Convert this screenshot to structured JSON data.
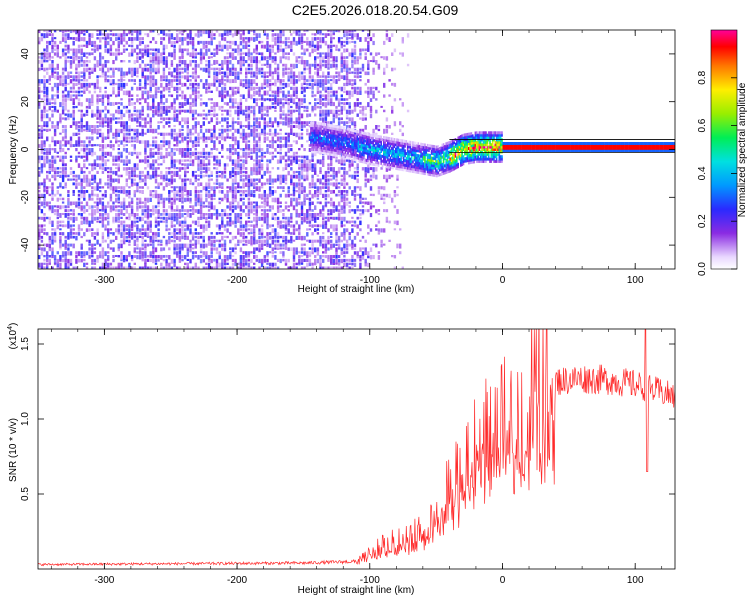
{
  "title": "C2E5.2026.018.20.54.G09",
  "chart_data": [
    {
      "type": "heatmap",
      "name": "spectrogram",
      "xlabel": "Height of straight line (km)",
      "ylabel": "Frequency (Hz)",
      "xlim": [
        -350,
        130
      ],
      "ylim": [
        -50,
        50
      ],
      "xticks": [
        -300,
        -200,
        -100,
        0,
        100
      ],
      "xtick_labels": [
        "-300",
        "-200",
        "-100",
        "0",
        "100"
      ],
      "yticks": [
        -40,
        -20,
        0,
        20,
        40
      ],
      "ytick_labels": [
        "-40",
        "-20",
        "0",
        "20",
        "40"
      ],
      "signal_track": {
        "x": [
          -140,
          -120,
          -100,
          -80,
          -60,
          -50,
          -40,
          -30,
          -20,
          -10,
          0,
          50,
          105,
          130
        ],
        "y": [
          5,
          3,
          0,
          -2,
          -4,
          -5,
          -3,
          0,
          1,
          1,
          1,
          1,
          1,
          1
        ]
      },
      "noise_region_x": [
        -350,
        -110
      ],
      "colorbar": {
        "label": "Normalized spectral amplitude",
        "range": [
          0,
          1
        ],
        "ticks": [
          0.0,
          0.2,
          0.4,
          0.6,
          0.8
        ],
        "tick_labels": [
          "0.0",
          "0.2",
          "0.4",
          "0.6",
          "0.8"
        ]
      }
    },
    {
      "type": "line",
      "name": "snr",
      "xlabel": "Height of straight line (km)",
      "ylabel": "SNR (10 * v/v)",
      "multiplier_label": "(x10",
      "multiplier_exponent": "4",
      "multiplier_close": ")",
      "xlim": [
        -350,
        130
      ],
      "ylim": [
        0,
        16000
      ],
      "xticks": [
        -300,
        -200,
        -100,
        0,
        100
      ],
      "xtick_labels": [
        "-300",
        "-200",
        "-100",
        "0",
        "100"
      ],
      "yticks": [
        5000,
        10000,
        15000
      ],
      "ytick_labels": [
        "0.5",
        "1.0",
        "1.5"
      ],
      "color": "#ff2a2a",
      "envelope": {
        "x": [
          -350,
          -150,
          -110,
          -100,
          -90,
          -80,
          -70,
          -60,
          -50,
          -40,
          -30,
          -20,
          -10,
          0,
          10,
          20,
          30,
          40,
          60,
          80,
          100,
          130
        ],
        "y": [
          300,
          400,
          500,
          1000,
          1500,
          1800,
          2000,
          2500,
          3500,
          5000,
          6500,
          7500,
          8500,
          9000,
          10000,
          11500,
          12200,
          12500,
          12700,
          12600,
          12300,
          11500
        ]
      },
      "spike": {
        "x": 108,
        "peak": 16000,
        "trough": 6500
      }
    }
  ]
}
